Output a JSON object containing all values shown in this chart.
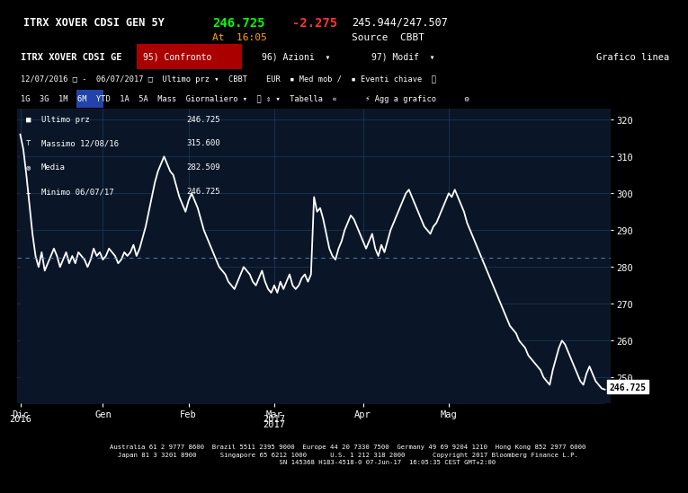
{
  "title_left": "ITRX XOVER CDSI GEN 5Y",
  "price": "246.725",
  "change": "-2.275",
  "range": "245.944/247.507",
  "time": "At  16:05",
  "source": "Source  CBBT",
  "legend_items": [
    {
      "label": "Ultimo prz",
      "value": "246.725"
    },
    {
      "label": "Massimo 12/08/16",
      "value": "315.600"
    },
    {
      "label": "Media",
      "value": "282.509"
    },
    {
      "label": "Minimo 06/07/17",
      "value": "246.725"
    }
  ],
  "last_label": "246.725",
  "avg_line": 282.509,
  "yticks": [
    250,
    260,
    270,
    280,
    290,
    300,
    310,
    320
  ],
  "ylim_min": 243,
  "ylim_max": 323,
  "bg_color": "#000000",
  "chart_bg": "#0a1628",
  "line_color": "#ffffff",
  "grid_color": "#1a3a5c",
  "avg_color": "#6688bb",
  "footer_text": "Australia 61 2 9777 8600  Brazil 5511 2395 9000  Europe 44 20 7330 7500  Germany 49 69 9204 1210  Hong Kong 852 2977 6000\nJapan 81 3 3201 8900      Singapore 65 6212 1000      U.S. 1 212 318 2000       Copyright 2017 Bloomberg Finance L.P.\n                    SN 145368 H183-4518-0 07-Jun-17  16:05:35 CEST GMT+2:00",
  "series": [
    316,
    312,
    305,
    297,
    289,
    283,
    280,
    284,
    279,
    281,
    283,
    285,
    283,
    280,
    282,
    284,
    281,
    283,
    281,
    284,
    283,
    282,
    280,
    282,
    285,
    283,
    284,
    282,
    283,
    285,
    284,
    283,
    281,
    282,
    284,
    283,
    284,
    286,
    283,
    285,
    288,
    291,
    295,
    299,
    303,
    306,
    308,
    310,
    308,
    306,
    305,
    302,
    299,
    297,
    295,
    298,
    300,
    298,
    296,
    293,
    290,
    288,
    286,
    284,
    282,
    280,
    279,
    278,
    276,
    275,
    274,
    276,
    278,
    280,
    279,
    278,
    276,
    275,
    277,
    279,
    276,
    274,
    273,
    275,
    273,
    276,
    274,
    276,
    278,
    275,
    274,
    275,
    277,
    278,
    276,
    278,
    299,
    295,
    296,
    293,
    289,
    285,
    283,
    282,
    285,
    287,
    290,
    292,
    294,
    293,
    291,
    289,
    287,
    285,
    287,
    289,
    285,
    283,
    286,
    284,
    287,
    290,
    292,
    294,
    296,
    298,
    300,
    301,
    299,
    297,
    295,
    293,
    291,
    290,
    289,
    291,
    292,
    294,
    296,
    298,
    300,
    299,
    301,
    299,
    297,
    295,
    292,
    290,
    288,
    286,
    284,
    282,
    280,
    278,
    276,
    274,
    272,
    270,
    268,
    266,
    264,
    263,
    262,
    260,
    259,
    258,
    256,
    255,
    254,
    253,
    252,
    250,
    249,
    248,
    252,
    255,
    258,
    260,
    259,
    257,
    255,
    253,
    251,
    249,
    248,
    251,
    253,
    251,
    249,
    248,
    247,
    246.725
  ],
  "xtick_positions": [
    0,
    27,
    55,
    83,
    112,
    140
  ],
  "xlabels_top": [
    "Dic",
    "Gen",
    "Feb",
    "Mar",
    "Apr",
    "Mag"
  ],
  "xlabels_bot": [
    "2016",
    "",
    "",
    "2017",
    "",
    ""
  ]
}
